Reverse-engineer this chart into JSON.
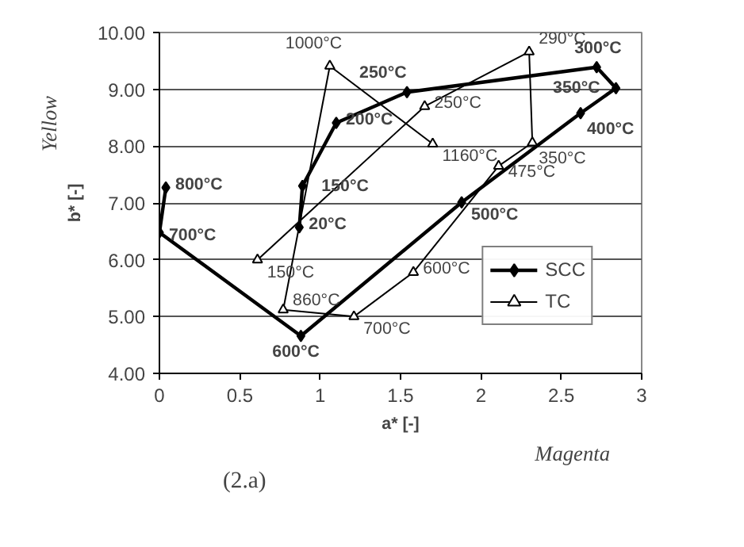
{
  "chart_data": {
    "type": "line",
    "xlabel": "a* [-]",
    "ylabel": "b* [-]",
    "xlim": [
      0,
      3
    ],
    "ylim": [
      4,
      10
    ],
    "xticks": [
      0,
      0.5,
      1,
      1.5,
      2,
      2.5,
      3
    ],
    "yticks": [
      {
        "value": 4,
        "label": "4.00"
      },
      {
        "value": 5,
        "label": "5.00"
      },
      {
        "value": 6,
        "label": "6.00"
      },
      {
        "value": 7,
        "label": "7.00"
      },
      {
        "value": 8,
        "label": "8.00"
      },
      {
        "value": 9,
        "label": "9.00"
      },
      {
        "value": 10,
        "label": "10.00"
      }
    ],
    "grid": "y",
    "legend": "bottom right",
    "series": [
      {
        "name": "SCC",
        "color": "#000000",
        "marker": "diamond",
        "x": [
          0.87,
          0.89,
          1.1,
          1.54,
          2.72,
          2.84,
          2.62,
          1.88,
          0.88,
          0.0,
          0.04
        ],
        "values": [
          6.57,
          7.3,
          8.41,
          8.95,
          9.39,
          9.02,
          8.58,
          7.01,
          4.66,
          6.48,
          7.27
        ]
      },
      {
        "name": "TC",
        "color": "#000000",
        "marker": "triangle",
        "x": [
          0.61,
          1.65,
          2.3,
          2.32,
          2.11,
          1.58,
          1.21,
          0.77,
          1.06,
          1.7
        ],
        "values": [
          6.0,
          8.7,
          9.66,
          8.06,
          7.65,
          5.78,
          5.0,
          5.12,
          9.41,
          8.04
        ]
      }
    ],
    "annotations": [
      {
        "text": "20°C",
        "x": 0.87,
        "y": 6.57
      },
      {
        "text": "150°C",
        "x": 0.89,
        "y": 7.3
      },
      {
        "text": "200°C",
        "x": 1.1,
        "y": 8.41
      },
      {
        "text": "250°C",
        "x": 1.54,
        "y": 8.95
      },
      {
        "text": "300°C",
        "x": 2.72,
        "y": 9.39
      },
      {
        "text": "350°C",
        "x": 2.84,
        "y": 9.02
      },
      {
        "text": "400°C",
        "x": 2.62,
        "y": 8.58
      },
      {
        "text": "500°C",
        "x": 1.88,
        "y": 7.01
      },
      {
        "text": "600°C",
        "x": 0.88,
        "y": 4.66
      },
      {
        "text": "700°C",
        "x": 0.0,
        "y": 6.48
      },
      {
        "text": "800°C",
        "x": 0.04,
        "y": 7.27
      },
      {
        "text": "150°C",
        "x": 0.61,
        "y": 6.0
      },
      {
        "text": "250°C",
        "x": 1.65,
        "y": 8.7
      },
      {
        "text": "290°C",
        "x": 2.3,
        "y": 9.66
      },
      {
        "text": "350°C",
        "x": 2.32,
        "y": 8.06
      },
      {
        "text": "475°C",
        "x": 2.11,
        "y": 7.65
      },
      {
        "text": "600°C",
        "x": 1.58,
        "y": 5.78
      },
      {
        "text": "700°C",
        "x": 1.21,
        "y": 5.0
      },
      {
        "text": "860°C",
        "x": 0.77,
        "y": 5.12
      },
      {
        "text": "1000°C",
        "x": 1.06,
        "y": 9.41
      },
      {
        "text": "1160°C",
        "x": 1.7,
        "y": 8.04
      },
      "Yellow",
      "Magenta",
      "(2.a)"
    ]
  }
}
